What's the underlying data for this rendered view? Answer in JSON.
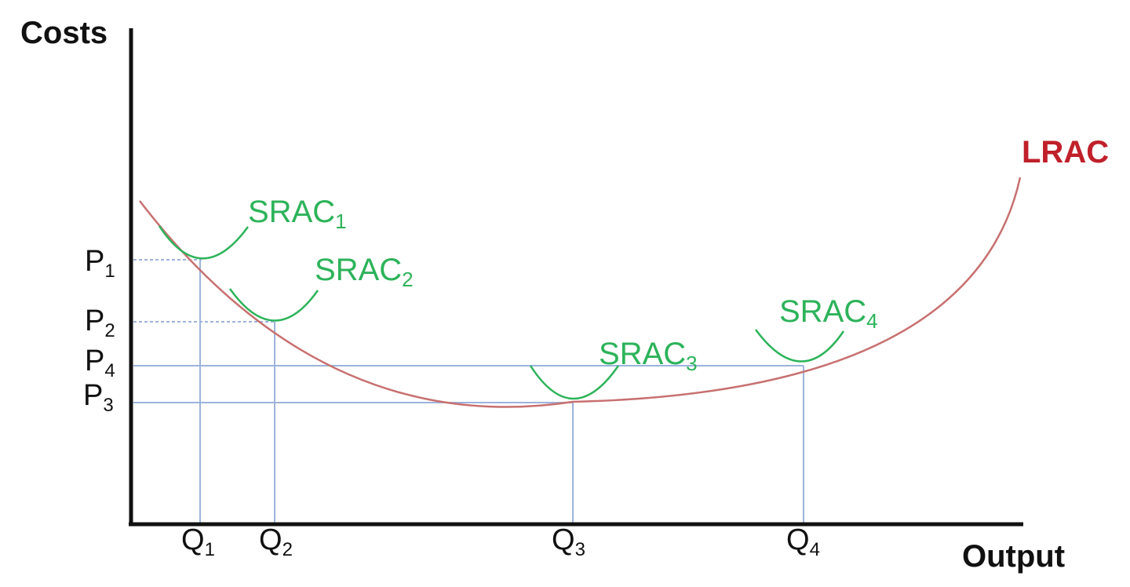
{
  "axes": {
    "y_title": "Costs",
    "x_title": "Output"
  },
  "y_ticks": [
    {
      "base": "P",
      "sub": "1"
    },
    {
      "base": "P",
      "sub": "2"
    },
    {
      "base": "P",
      "sub": "4"
    },
    {
      "base": "P",
      "sub": "3"
    }
  ],
  "x_ticks": [
    {
      "base": "Q",
      "sub": "1"
    },
    {
      "base": "Q",
      "sub": "2"
    },
    {
      "base": "Q",
      "sub": "3"
    },
    {
      "base": "Q",
      "sub": "4"
    }
  ],
  "curves": {
    "lrac": {
      "label": "LRAC",
      "color": "#c0202a",
      "stroke": "#c87070"
    },
    "srac": [
      {
        "base": "SRAC",
        "sub": "1"
      },
      {
        "base": "SRAC",
        "sub": "2"
      },
      {
        "base": "SRAC",
        "sub": "3"
      },
      {
        "base": "SRAC",
        "sub": "4"
      }
    ],
    "srac_color": "#2db35a"
  },
  "colors": {
    "axis": "#111111",
    "guide": "#9db3dc"
  }
}
